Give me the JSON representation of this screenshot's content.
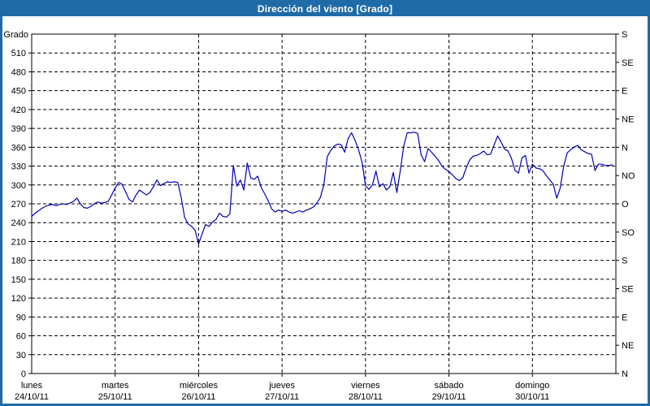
{
  "window": {
    "title": "Dirección del viento [Grado]"
  },
  "colors": {
    "titlebar_bg": "#1e6ba8",
    "titlebar_text": "#ffffff",
    "border": "#1e6ba8",
    "plot_bg": "#ffffff",
    "grid": "#000000",
    "axis": "#000000",
    "text": "#000000",
    "line": "#0000b8"
  },
  "chart_data": {
    "type": "line",
    "title": "Dirección del viento [Grado]",
    "ylabel": "Grado",
    "grid": "dashed",
    "legend": "none",
    "y_left": {
      "min": 0,
      "max": 540,
      "step": 30,
      "label_max": 510
    },
    "y_right": {
      "step": 45,
      "labels_bottom_to_top": [
        "N",
        "NE",
        "E",
        "SE",
        "S",
        "SO",
        "O",
        "NO",
        "N",
        "NE",
        "E",
        "SE",
        "S"
      ]
    },
    "x_days": [
      {
        "day": "lunes",
        "date": "24/10/11"
      },
      {
        "day": "martes",
        "date": "25/10/11"
      },
      {
        "day": "miércoles",
        "date": "26/10/11"
      },
      {
        "day": "jueves",
        "date": "27/10/11"
      },
      {
        "day": "viernes",
        "date": "28/10/11"
      },
      {
        "day": "sábado",
        "date": "29/10/11"
      },
      {
        "day": "domingo",
        "date": "30/10/11"
      }
    ],
    "series": [
      {
        "name": "Dirección del viento (Grado)",
        "color": "#0000b8",
        "points_per_day": 24,
        "values": [
          250,
          255,
          259,
          263,
          266,
          268,
          269,
          267,
          269,
          270,
          269,
          271,
          274,
          279,
          270,
          264,
          263,
          266,
          270,
          273,
          271,
          272,
          274,
          284,
          295,
          304,
          301,
          289,
          277,
          273,
          284,
          292,
          288,
          284,
          288,
          297,
          308,
          299,
          302,
          305,
          304,
          305,
          304,
          280,
          248,
          238,
          234,
          228,
          206,
          222,
          237,
          234,
          241,
          245,
          255,
          250,
          249,
          254,
          331,
          298,
          308,
          292,
          335,
          311,
          309,
          314,
          296,
          286,
          275,
          262,
          257,
          260,
          258,
          260,
          257,
          255,
          257,
          259,
          257,
          260,
          262,
          265,
          271,
          280,
          300,
          345,
          355,
          362,
          365,
          364,
          352,
          374,
          383,
          371,
          356,
          336,
          299,
          293,
          300,
          322,
          297,
          302,
          292,
          297,
          320,
          288,
          323,
          362,
          383,
          383,
          384,
          382,
          348,
          337,
          358,
          352,
          346,
          339,
          330,
          325,
          321,
          316,
          310,
          307,
          312,
          328,
          340,
          346,
          347,
          350,
          354,
          348,
          349,
          364,
          378,
          368,
          357,
          354,
          342,
          323,
          319,
          343,
          347,
          319,
          333,
          327,
          326,
          323,
          315,
          308,
          301,
          279,
          295,
          330,
          351,
          356,
          360,
          363,
          356,
          353,
          350,
          349,
          323,
          333,
          333,
          331,
          331,
          332
        ]
      }
    ]
  }
}
